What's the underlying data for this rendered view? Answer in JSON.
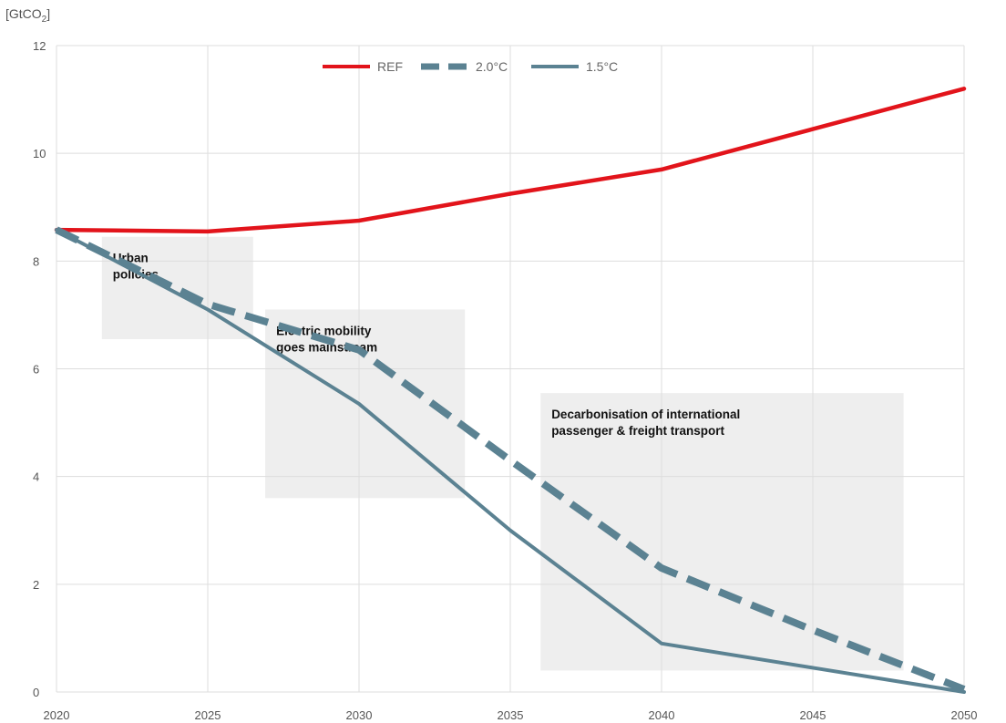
{
  "chart_data": {
    "type": "line",
    "unit_label": "[GtCO2]",
    "x": [
      2020,
      2025,
      2030,
      2035,
      2040,
      2045,
      2050
    ],
    "xlim": [
      2020,
      2050
    ],
    "ylim": [
      0,
      12
    ],
    "x_ticks": [
      "2020",
      "2025",
      "2030",
      "2035",
      "2040",
      "2045",
      "2050"
    ],
    "y_ticks": [
      "0",
      "2",
      "4",
      "6",
      "8",
      "10",
      "12"
    ],
    "grid": true,
    "legend_position": "top-center",
    "series": [
      {
        "name": "REF",
        "style": "solid",
        "color": "#e2141b",
        "values": [
          8.58,
          8.55,
          8.75,
          9.25,
          9.7,
          10.45,
          11.2
        ]
      },
      {
        "name": "2.0°C",
        "style": "dashed",
        "color": "#5b8292",
        "values": [
          8.58,
          7.2,
          6.35,
          4.3,
          2.3,
          1.15,
          0.05
        ]
      },
      {
        "name": "1.5°C",
        "style": "solid",
        "color": "#5b8292",
        "values": [
          8.58,
          7.1,
          5.35,
          3.0,
          0.9,
          0.45,
          0.0
        ]
      }
    ],
    "annotations": [
      {
        "lines": [
          "Urban",
          "policies"
        ],
        "x_range": [
          2021.5,
          2026.5
        ],
        "y_range": [
          6.55,
          8.45
        ]
      },
      {
        "lines": [
          "Electric mobility",
          "goes mainstream"
        ],
        "x_range": [
          2026.9,
          2033.5
        ],
        "y_range": [
          3.6,
          7.1
        ]
      },
      {
        "lines": [
          "Decarbonisation of international",
          "passenger & freight transport"
        ],
        "x_range": [
          2036.0,
          2048.0
        ],
        "y_range": [
          0.4,
          5.55
        ]
      }
    ]
  }
}
